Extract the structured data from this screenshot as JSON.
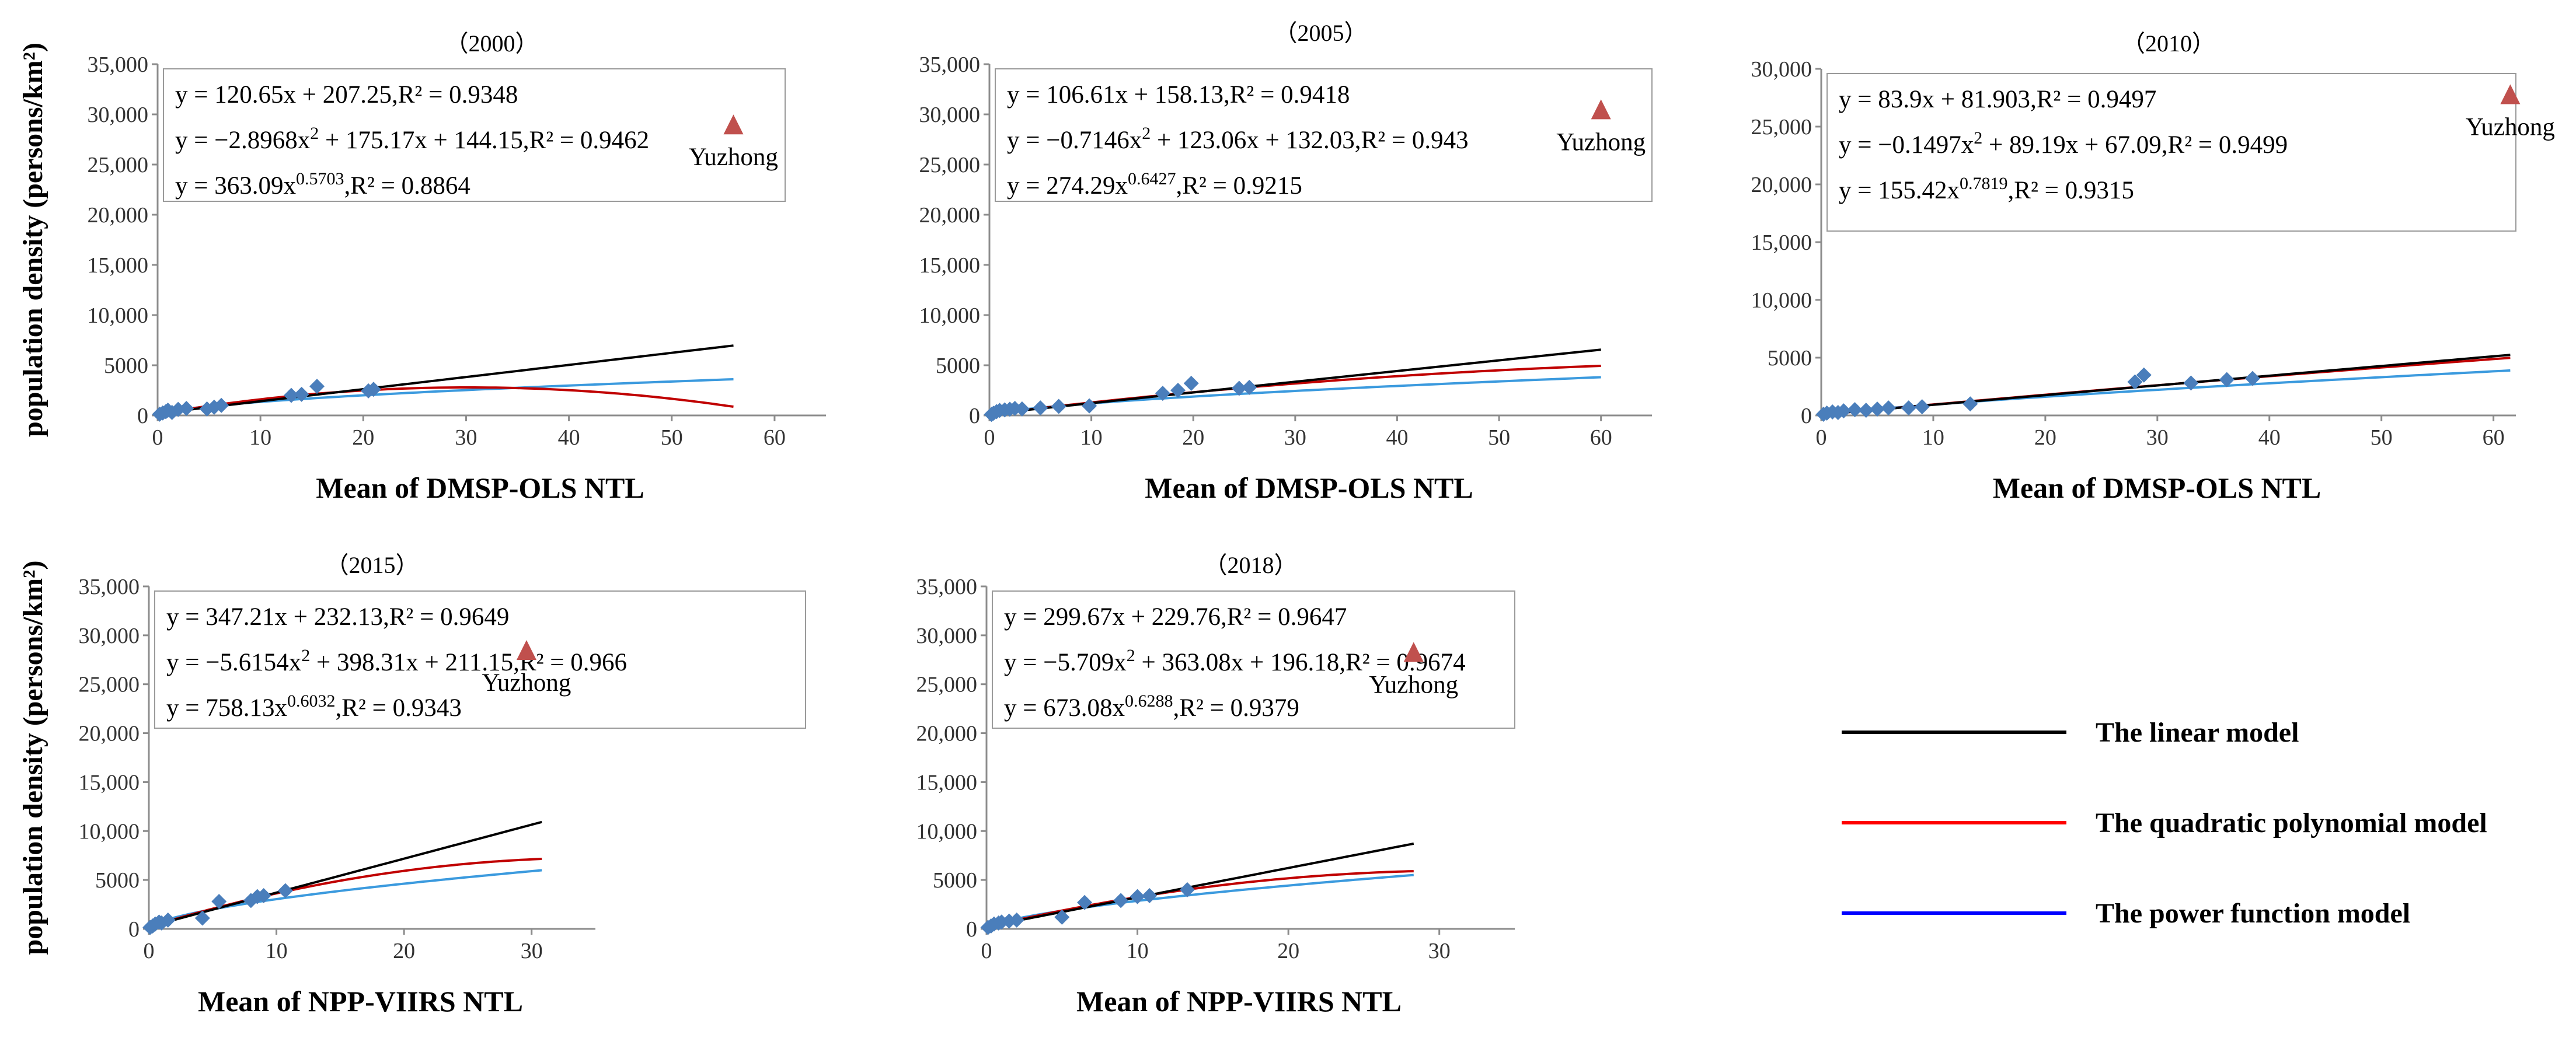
{
  "chart_data": [
    {
      "type": "scatter",
      "title": "（2000）",
      "xlabel": "Mean of DMSP-OLS NTL",
      "ylabel": "population density (persons/km²)",
      "xlim": [
        0,
        65
      ],
      "ylim": [
        0,
        35000
      ],
      "xticks": [
        0,
        10,
        20,
        30,
        40,
        50,
        60
      ],
      "yticks": [
        0,
        5000,
        10000,
        15000,
        20000,
        25000,
        30000,
        35000
      ],
      "ytick_labels": [
        "0",
        "5000",
        "10,000",
        "15,000",
        "20,000",
        "25,000",
        "30,000",
        "35,000"
      ],
      "points": [
        [
          0.2,
          120
        ],
        [
          0.5,
          250
        ],
        [
          0.8,
          380
        ],
        [
          1.0,
          520
        ],
        [
          1.4,
          300
        ],
        [
          2.0,
          600
        ],
        [
          2.8,
          700
        ],
        [
          4.8,
          650
        ],
        [
          5.5,
          820
        ],
        [
          6.2,
          1000
        ],
        [
          13.0,
          2000
        ],
        [
          14.0,
          2100
        ],
        [
          15.5,
          2900
        ],
        [
          20.5,
          2450
        ],
        [
          21.0,
          2600
        ]
      ],
      "outlier": {
        "label": "Yuzhong",
        "x": 56.0,
        "y": 29000
      },
      "fit_xmax": 56,
      "equations": {
        "linear": {
          "pre": "y = 120.65x + 207.25,R² = 0.9348"
        },
        "quadratic": {
          "pre": "y = −2.8968x",
          "sup": "2",
          "post": " + 175.17x + 144.15,R² = 0.9462"
        },
        "power": {
          "pre": "y = 363.09x",
          "sup": "0.5703",
          "post": ",R² = 0.8864"
        }
      },
      "models": {
        "linear": [
          120.65,
          207.25
        ],
        "quadratic": [
          -2.8968,
          175.17,
          144.15
        ],
        "power": [
          363.09,
          0.5703
        ]
      }
    },
    {
      "type": "scatter",
      "title": "（2005）",
      "xlabel": "Mean of DMSP-OLS NTL",
      "ylabel": "",
      "xlim": [
        0,
        65
      ],
      "ylim": [
        0,
        35000
      ],
      "xticks": [
        0,
        10,
        20,
        30,
        40,
        50,
        60
      ],
      "yticks": [
        0,
        5000,
        10000,
        15000,
        20000,
        25000,
        30000,
        35000
      ],
      "ytick_labels": [
        "0",
        "5000",
        "10,000",
        "15,000",
        "20,000",
        "25,000",
        "30,000",
        "35,000"
      ],
      "points": [
        [
          0.2,
          100
        ],
        [
          0.4,
          220
        ],
        [
          0.7,
          380
        ],
        [
          1.0,
          500
        ],
        [
          1.5,
          550
        ],
        [
          2.0,
          620
        ],
        [
          2.5,
          700
        ],
        [
          3.2,
          650
        ],
        [
          5.0,
          750
        ],
        [
          6.8,
          900
        ],
        [
          9.8,
          950
        ],
        [
          17.0,
          2200
        ],
        [
          18.5,
          2500
        ],
        [
          19.8,
          3200
        ],
        [
          24.5,
          2700
        ],
        [
          25.5,
          2800
        ]
      ],
      "outlier": {
        "label": "Yuzhong",
        "x": 60.0,
        "y": 30500
      },
      "fit_xmax": 60,
      "equations": {
        "linear": {
          "pre": "y = 106.61x + 158.13,R² = 0.9418"
        },
        "quadratic": {
          "pre": "y = −0.7146x",
          "sup": "2",
          "post": " + 123.06x + 132.03,R² = 0.943"
        },
        "power": {
          "pre": "y = 274.29x",
          "sup": "0.6427",
          "post": ",R² = 0.9215"
        }
      },
      "models": {
        "linear": [
          106.61,
          158.13
        ],
        "quadratic": [
          -0.7146,
          123.06,
          132.03
        ],
        "power": [
          274.29,
          0.6427
        ]
      }
    },
    {
      "type": "scatter",
      "title": "（2010）",
      "xlabel": "Mean of DMSP-OLS NTL",
      "ylabel": "",
      "xlim": [
        0,
        62
      ],
      "ylim": [
        0,
        30000
      ],
      "xticks": [
        0,
        10,
        20,
        30,
        40,
        50,
        60
      ],
      "yticks": [
        0,
        5000,
        10000,
        15000,
        20000,
        25000,
        30000
      ],
      "ytick_labels": [
        "0",
        "5000",
        "10,000",
        "15,000",
        "20,000",
        "25,000",
        "30,000"
      ],
      "points": [
        [
          0.2,
          100
        ],
        [
          0.5,
          200
        ],
        [
          1.0,
          300
        ],
        [
          1.5,
          250
        ],
        [
          2.0,
          400
        ],
        [
          3.0,
          500
        ],
        [
          4.0,
          450
        ],
        [
          5.0,
          550
        ],
        [
          6.0,
          650
        ],
        [
          7.8,
          650
        ],
        [
          9.0,
          750
        ],
        [
          13.3,
          1000
        ],
        [
          28.0,
          2900
        ],
        [
          28.8,
          3500
        ],
        [
          33.0,
          2800
        ],
        [
          36.2,
          3100
        ],
        [
          38.5,
          3200
        ]
      ],
      "outlier": {
        "label": "Yuzhong",
        "x": 61.5,
        "y": 27800
      },
      "fit_xmax": 61.5,
      "equations": {
        "linear": {
          "pre": "y = 83.9x + 81.903,R² = 0.9497"
        },
        "quadratic": {
          "pre": "y = −0.1497x",
          "sup": "2",
          "post": " + 89.19x + 67.09,R² = 0.9499"
        },
        "power": {
          "pre": "y = 155.42x",
          "sup": "0.7819",
          "post": ",R² = 0.9315"
        }
      },
      "models": {
        "linear": [
          83.9,
          81.903
        ],
        "quadratic": [
          -0.1497,
          89.19,
          67.09
        ],
        "power": [
          155.42,
          0.7819
        ]
      }
    },
    {
      "type": "scatter",
      "title": "（2015）",
      "xlabel": "Mean of NPP-VIIRS NTL",
      "ylabel": "population density (persons/km²)",
      "xlim": [
        0,
        35
      ],
      "ylim": [
        0,
        35000
      ],
      "xticks": [
        0,
        10,
        20,
        30
      ],
      "yticks": [
        0,
        5000,
        10000,
        15000,
        20000,
        25000,
        30000,
        35000
      ],
      "ytick_labels": [
        "0",
        "5000",
        "10,000",
        "15,000",
        "20,000",
        "25,000",
        "30,000",
        "35,000"
      ],
      "points": [
        [
          0.1,
          150
        ],
        [
          0.3,
          300
        ],
        [
          0.5,
          500
        ],
        [
          0.8,
          700
        ],
        [
          1.0,
          600
        ],
        [
          1.5,
          900
        ],
        [
          4.2,
          1100
        ],
        [
          5.5,
          2800
        ],
        [
          8.0,
          2900
        ],
        [
          8.5,
          3300
        ],
        [
          9.0,
          3400
        ],
        [
          10.7,
          3900
        ]
      ],
      "outlier": {
        "label": "Yuzhong",
        "x": 29.6,
        "y": 28500
      },
      "fit_xmax": 30.8,
      "equations": {
        "linear": {
          "pre": "y = 347.21x + 232.13,R² = 0.9649"
        },
        "quadratic": {
          "pre": "y = −5.6154x",
          "sup": "2",
          "post": " + 398.31x + 211.15,R² = 0.966"
        },
        "power": {
          "pre": "y = 758.13x",
          "sup": "0.6032",
          "post": ",R² = 0.9343"
        }
      },
      "models": {
        "linear": [
          347.21,
          232.13
        ],
        "quadratic": [
          -5.6154,
          398.31,
          211.15
        ],
        "power": [
          758.13,
          0.6032
        ]
      }
    },
    {
      "type": "scatter",
      "title": "（2018）",
      "xlabel": "Mean of NPP-VIIRS NTL",
      "ylabel": "",
      "xlim": [
        0,
        35
      ],
      "ylim": [
        0,
        35000
      ],
      "xticks": [
        0,
        10,
        20,
        30
      ],
      "yticks": [
        0,
        5000,
        10000,
        15000,
        20000,
        25000,
        30000,
        35000
      ],
      "ytick_labels": [
        "0",
        "5000",
        "10,000",
        "15,000",
        "20,000",
        "25,000",
        "30,000",
        "35,000"
      ],
      "points": [
        [
          0.1,
          150
        ],
        [
          0.3,
          300
        ],
        [
          0.5,
          500
        ],
        [
          0.8,
          600
        ],
        [
          1.0,
          700
        ],
        [
          1.5,
          800
        ],
        [
          2.0,
          900
        ],
        [
          5.0,
          1200
        ],
        [
          6.5,
          2700
        ],
        [
          8.9,
          2900
        ],
        [
          10.0,
          3300
        ],
        [
          10.8,
          3400
        ],
        [
          13.3,
          4000
        ]
      ],
      "outlier": {
        "label": "Yuzhong",
        "x": 28.3,
        "y": 28300
      },
      "fit_xmax": 28.3,
      "equations": {
        "linear": {
          "pre": "y = 299.67x + 229.76,R² = 0.9647"
        },
        "quadratic": {
          "pre": "y = −5.709x",
          "sup": "2",
          "post": " + 363.08x + 196.18,R² = 0.9674"
        },
        "power": {
          "pre": "y = 673.08x",
          "sup": "0.6288",
          "post": ",R² = 0.9379"
        }
      },
      "models": {
        "linear": [
          299.67,
          229.76
        ],
        "quadratic": [
          -5.709,
          363.08,
          196.18
        ],
        "power": [
          673.08,
          0.6288
        ]
      }
    }
  ],
  "legend": [
    {
      "key": "linear",
      "label": "The linear model"
    },
    {
      "key": "quadratic",
      "label": "The quadratic polynomial model"
    },
    {
      "key": "power",
      "label": "The power function model"
    }
  ],
  "colors": {
    "linear": "#000000",
    "quadratic": "#c00000",
    "power": "#3b9ade",
    "points": "#4a7ebb",
    "outlier": "#c0504d",
    "legend_quadratic": "#ff0000",
    "legend_power": "#0000ff"
  }
}
